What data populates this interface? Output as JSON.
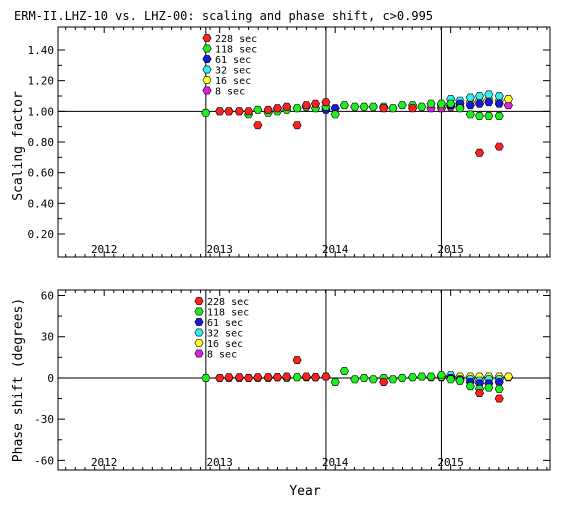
{
  "chart_data": [
    {
      "type": "scatter",
      "title": "ERM-II.LHZ-10 vs. LHZ-00: scaling and phase shift, c>0.995",
      "xlabel": "",
      "ylabel": "Scaling factor",
      "xlim": [
        2011.6,
        2015.86
      ],
      "ylim": [
        0.05,
        1.55
      ],
      "xticks": [
        2012,
        2013,
        2014,
        2015
      ],
      "xtick_labels": [
        "2012",
        "2013",
        "2014",
        "2015"
      ],
      "yticks": [
        0.2,
        0.4,
        0.6,
        0.8,
        1.0,
        1.2,
        1.4
      ],
      "ytick_labels": [
        "0.20",
        "0.40",
        "0.60",
        "0.80",
        "1.00",
        "1.20",
        "1.40"
      ],
      "reference_line": 1.0,
      "legend_position": "top-center",
      "series": [
        {
          "name": "228 sec",
          "color": "#ff2020",
          "x": [
            2013.0,
            2013.08,
            2013.17,
            2013.25,
            2013.33,
            2013.42,
            2013.5,
            2013.58,
            2013.67,
            2013.75,
            2013.83,
            2013.92,
            2014.42,
            2014.67,
            2015.25,
            2015.42
          ],
          "y": [
            1.0,
            1.0,
            1.0,
            1.0,
            0.91,
            1.01,
            1.02,
            1.03,
            0.91,
            1.04,
            1.05,
            1.06,
            1.02,
            1.02,
            0.73,
            0.77
          ]
        },
        {
          "name": "118 sec",
          "color": "#20ee20",
          "x": [
            2012.88,
            2013.0,
            2013.08,
            2013.17,
            2013.25,
            2013.33,
            2013.42,
            2013.5,
            2013.58,
            2013.67,
            2013.75,
            2013.83,
            2013.92,
            2014.0,
            2014.08,
            2014.17,
            2014.25,
            2014.33,
            2014.42,
            2014.5,
            2014.58,
            2014.67,
            2014.75,
            2014.83,
            2014.92,
            2015.0,
            2015.08,
            2015.17,
            2015.25,
            2015.33,
            2015.42
          ],
          "y": [
            0.99,
            1.0,
            1.0,
            1.0,
            0.98,
            1.01,
            0.99,
            1.0,
            1.01,
            1.02,
            1.03,
            1.02,
            1.03,
            0.98,
            1.04,
            1.03,
            1.03,
            1.03,
            1.03,
            1.02,
            1.04,
            1.04,
            1.03,
            1.05,
            1.05,
            1.05,
            1.02,
            0.98,
            0.97,
            0.97,
            0.97
          ]
        },
        {
          "name": "61 sec",
          "color": "#1818e0",
          "x": [
            2013.92,
            2014.0,
            2015.0,
            2015.08,
            2015.17,
            2015.25,
            2015.33,
            2015.42
          ],
          "y": [
            1.01,
            1.02,
            1.04,
            1.05,
            1.04,
            1.05,
            1.06,
            1.05
          ]
        },
        {
          "name": "32 sec",
          "color": "#30f0f0",
          "x": [
            2015.0,
            2015.08,
            2015.17,
            2015.25,
            2015.33,
            2015.42
          ],
          "y": [
            1.08,
            1.07,
            1.09,
            1.1,
            1.11,
            1.1
          ]
        },
        {
          "name": "16 sec",
          "color": "#ffff30",
          "x": [
            2014.92,
            2015.0,
            2015.08,
            2015.17,
            2015.25,
            2015.33,
            2015.42,
            2015.5
          ],
          "y": [
            1.04,
            1.05,
            1.05,
            1.06,
            1.07,
            1.08,
            1.07,
            1.08
          ]
        },
        {
          "name": "8 sec",
          "color": "#e020e0",
          "x": [
            2014.83,
            2014.92,
            2015.0,
            2015.08,
            2015.5
          ],
          "y": [
            1.02,
            1.02,
            1.03,
            1.03,
            1.04
          ]
        }
      ]
    },
    {
      "type": "scatter",
      "title": "",
      "xlabel": "Year",
      "ylabel": "Phase shift (degrees)",
      "xlim": [
        2011.6,
        2015.86
      ],
      "ylim": [
        -67,
        64
      ],
      "xticks": [
        2012,
        2013,
        2014,
        2015
      ],
      "xtick_labels": [
        "2012",
        "2013",
        "2014",
        "2015"
      ],
      "yticks": [
        -60,
        -30,
        0,
        30,
        60
      ],
      "ytick_labels": [
        "-60",
        "-30",
        "0",
        "30",
        "60"
      ],
      "reference_line": 0,
      "legend_position": "top-center",
      "series": [
        {
          "name": "228 sec",
          "color": "#ff2020",
          "x": [
            2013.0,
            2013.08,
            2013.17,
            2013.25,
            2013.33,
            2013.42,
            2013.5,
            2013.58,
            2013.67,
            2013.75,
            2013.83,
            2013.92,
            2014.42,
            2015.25,
            2015.42
          ],
          "y": [
            0,
            0.5,
            0.5,
            0,
            0.5,
            0.5,
            0.5,
            1,
            13,
            1,
            0.5,
            1,
            -3,
            -11,
            -15
          ]
        },
        {
          "name": "118 sec",
          "color": "#20ee20",
          "x": [
            2012.88,
            2013.0,
            2013.08,
            2013.17,
            2013.25,
            2013.33,
            2013.42,
            2013.5,
            2013.58,
            2013.67,
            2013.75,
            2013.83,
            2013.92,
            2014.0,
            2014.08,
            2014.17,
            2014.25,
            2014.33,
            2014.42,
            2014.5,
            2014.58,
            2014.67,
            2014.75,
            2014.83,
            2014.92,
            2015.0,
            2015.08,
            2015.17,
            2015.25,
            2015.33,
            2015.42
          ],
          "y": [
            0,
            0,
            0,
            0,
            0,
            0,
            0,
            0.5,
            0,
            0.5,
            0.5,
            0.5,
            1,
            -3,
            5,
            -1,
            0,
            -1,
            0,
            -1,
            0,
            0.5,
            1,
            1,
            2,
            -1,
            -2,
            -6,
            -8,
            -7,
            -8
          ]
        },
        {
          "name": "61 sec",
          "color": "#1818e0",
          "x": [
            2015.0,
            2015.08,
            2015.17,
            2015.25,
            2015.33,
            2015.42
          ],
          "y": [
            0,
            -1,
            -3,
            -4,
            -4,
            -3
          ]
        },
        {
          "name": "32 sec",
          "color": "#30f0f0",
          "x": [
            2015.0,
            2015.08,
            2015.17,
            2015.25,
            2015.33,
            2015.42
          ],
          "y": [
            2,
            -2,
            -1,
            -2,
            -1,
            -1
          ]
        },
        {
          "name": "16 sec",
          "color": "#ffff30",
          "x": [
            2014.92,
            2015.0,
            2015.08,
            2015.17,
            2015.25,
            2015.33,
            2015.42,
            2015.5
          ],
          "y": [
            1,
            1,
            1,
            1,
            1,
            1,
            1,
            1
          ]
        },
        {
          "name": "8 sec",
          "color": "#e020e0",
          "x": [
            2014.83,
            2014.92,
            2015.0,
            2015.5
          ],
          "y": [
            0.5,
            0.5,
            1,
            0.5
          ]
        }
      ]
    }
  ]
}
